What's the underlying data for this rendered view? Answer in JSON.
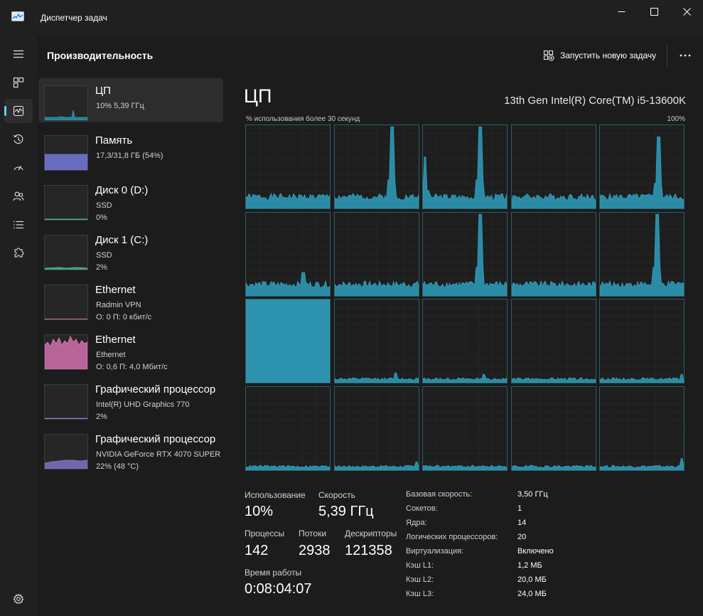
{
  "window": {
    "title": "Диспетчер задач"
  },
  "header": {
    "page_title": "Производительность",
    "run_task_label": "Запустить новую задачу"
  },
  "devices": [
    {
      "name": "ЦП",
      "line2": "10%  5,39 ГГц",
      "line3": "",
      "color": "#2e9fbd",
      "active": true
    },
    {
      "name": "Память",
      "line2": "17,3/31,8 ГБ (54%)",
      "line3": "",
      "color": "#7b7de8",
      "active": false
    },
    {
      "name": "Диск 0 (D:)",
      "line2": "SSD",
      "line3": "0%",
      "color": "#4cc2a6",
      "active": false
    },
    {
      "name": "Диск 1 (C:)",
      "line2": "SSD",
      "line3": "2%",
      "color": "#4cc2a6",
      "active": false
    },
    {
      "name": "Ethernet",
      "line2": "Radmin VPN",
      "line3": "О: 0  П: 0 кбит/с",
      "color": "#e87ac0",
      "active": false
    },
    {
      "name": "Ethernet",
      "line2": "Ethernet",
      "line3": "О: 0,6  П: 4,0 Мбит/с",
      "color": "#e87ac0",
      "active": false
    },
    {
      "name": "Графический процессор",
      "line2": "Intel(R) UHD Graphics 770",
      "line3": "2%",
      "color": "#8f7ad8",
      "active": false
    },
    {
      "name": "Графический процессор",
      "line2": "NVIDIA GeForce RTX 4070 SUPER",
      "line3": "22% (48 °C)",
      "color": "#8f7ad8",
      "active": false
    }
  ],
  "cpu": {
    "title": "ЦП",
    "model": "13th Gen Intel(R) Core(TM) i5-13600K",
    "graph_label": "% использования более 30 секунд",
    "graph_max": "100%",
    "accent": "#2e9fbd"
  },
  "stats": {
    "usage_label": "Использование",
    "usage_value": "10%",
    "speed_label": "Скорость",
    "speed_value": "5,39 ГГц",
    "processes_label": "Процессы",
    "processes_value": "142",
    "threads_label": "Потоки",
    "threads_value": "2938",
    "handles_label": "Дескрипторы",
    "handles_value": "121358",
    "uptime_label": "Время работы",
    "uptime_value": "0:08:04:07"
  },
  "specs": [
    {
      "label": "Базовая скорость:",
      "value": "3,50 ГГц"
    },
    {
      "label": "Сокетов:",
      "value": "1"
    },
    {
      "label": "Ядра:",
      "value": "14"
    },
    {
      "label": "Логических процессоров:",
      "value": "20"
    },
    {
      "label": "Виртуализация:",
      "value": "Включено"
    },
    {
      "label": "Кэш L1:",
      "value": "1,2 МБ"
    },
    {
      "label": "Кэш L2:",
      "value": "20,0 МБ"
    },
    {
      "label": "Кэш L3:",
      "value": "24,0 МБ"
    }
  ]
}
